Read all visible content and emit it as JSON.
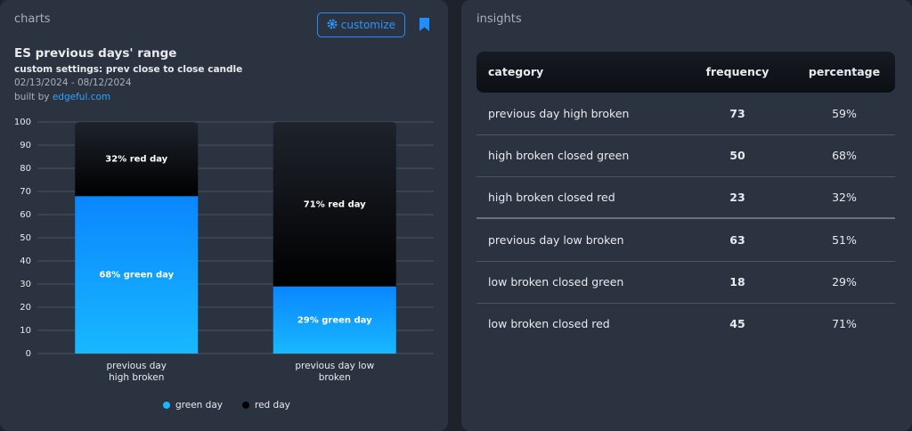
{
  "header": {
    "title": "charts",
    "button": "customize"
  },
  "chart_data": {
    "type": "bar",
    "stacked": true,
    "title": "ES previous days' range",
    "subtitle": "custom settings: prev close to close candle",
    "date_range": "02/13/2024 - 08/12/2024",
    "credit_prefix": "built by",
    "credit_link": "edgeful.com",
    "categories": [
      "previous day high broken",
      "previous day low broken"
    ],
    "series": [
      {
        "name": "green day",
        "color": "#18b8ff",
        "values": [
          68,
          29
        ],
        "value_labels": [
          "68% green day",
          "29% green day"
        ]
      },
      {
        "name": "red day",
        "color": "#000000",
        "values": [
          32,
          71
        ],
        "value_labels": [
          "32% red day",
          "71% red day"
        ]
      }
    ],
    "ylim": [
      0,
      100
    ],
    "yticks": [
      0,
      10,
      20,
      30,
      40,
      50,
      60,
      70,
      80,
      90,
      100
    ],
    "grid": true
  },
  "insights": {
    "title": "insights",
    "table": {
      "columns": [
        "category",
        "frequency",
        "percentage"
      ],
      "groups": [
        [
          [
            "previous day high broken",
            "73",
            "59%"
          ],
          [
            "high broken closed green",
            "50",
            "68%"
          ],
          [
            "high broken closed red",
            "23",
            "32%"
          ]
        ],
        [
          [
            "previous day low broken",
            "63",
            "51%"
          ],
          [
            "low broken closed green",
            "18",
            "29%"
          ],
          [
            "low broken closed red",
            "45",
            "71%"
          ]
        ]
      ]
    }
  }
}
